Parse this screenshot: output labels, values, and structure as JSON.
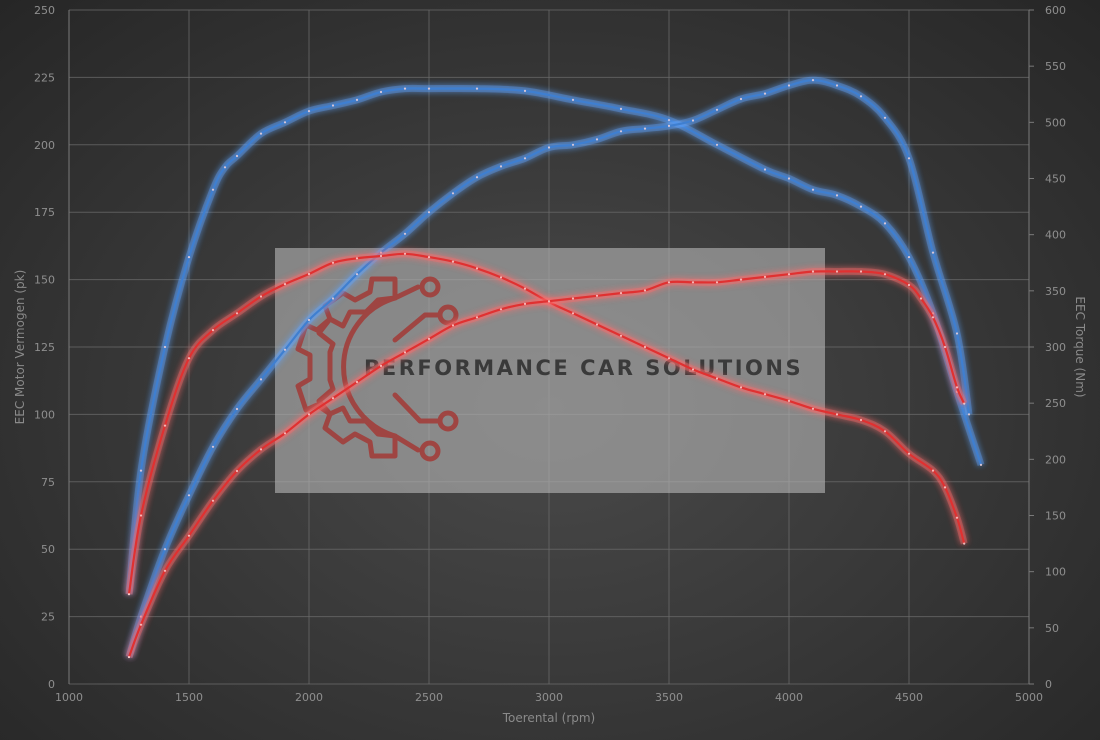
{
  "watermark": {
    "text": "PERFORMANCE CAR SOLUTIONS",
    "logo_color": "#a33a36"
  },
  "colors": {
    "tuned": "#3f7fd0",
    "tuned_glow": "#5ea2ff",
    "stock": "#e03131",
    "stock_glow": "#ff6b6b"
  },
  "chart_data": {
    "type": "line",
    "title": "",
    "xlabel": "Toerental (rpm)",
    "ylabel_left": "EEC Motor Vermogen (pk)",
    "ylabel_right": "EEC Torque (Nm)",
    "xlim": [
      1000,
      5000
    ],
    "ylim_left": [
      0,
      250
    ],
    "ylim_right": [
      0,
      600
    ],
    "x_ticks": [
      1000,
      1500,
      2000,
      2500,
      3000,
      3500,
      4000,
      4500,
      5000
    ],
    "y_left_ticks": [
      0,
      25,
      50,
      75,
      100,
      125,
      150,
      175,
      200,
      225,
      250
    ],
    "y_right_ticks": [
      0,
      50,
      100,
      150,
      200,
      250,
      300,
      350,
      400,
      450,
      500,
      550,
      600
    ],
    "grid": true,
    "legend": "none",
    "series": [
      {
        "axis": "right",
        "color_key": "tuned",
        "x": [
          1250,
          1300,
          1400,
          1500,
          1600,
          1650,
          1700,
          1800,
          1900,
          2000,
          2100,
          2200,
          2300,
          2400,
          2500,
          2700,
          2900,
          3100,
          3300,
          3500,
          3700,
          3900,
          4000,
          4100,
          4200,
          4300,
          4400,
          4500,
          4600,
          4700,
          4800
        ],
        "y": [
          80,
          190,
          300,
          380,
          440,
          460,
          470,
          490,
          500,
          510,
          515,
          520,
          527,
          530,
          530,
          530,
          528,
          520,
          512,
          502,
          480,
          458,
          450,
          440,
          435,
          425,
          410,
          380,
          330,
          260,
          195
        ]
      },
      {
        "axis": "left",
        "color_key": "tuned",
        "x": [
          1250,
          1300,
          1400,
          1500,
          1600,
          1700,
          1800,
          1900,
          2000,
          2100,
          2200,
          2300,
          2400,
          2500,
          2600,
          2700,
          2800,
          2900,
          3000,
          3100,
          3200,
          3300,
          3400,
          3500,
          3600,
          3700,
          3800,
          3900,
          4000,
          4100,
          4200,
          4300,
          4400,
          4500,
          4600,
          4700,
          4750
        ],
        "y": [
          10,
          25,
          50,
          70,
          88,
          102,
          113,
          124,
          135,
          143,
          152,
          160,
          167,
          175,
          182,
          188,
          192,
          195,
          199,
          200,
          202,
          205,
          206,
          207,
          209,
          213,
          217,
          219,
          222,
          224,
          222,
          218,
          210,
          195,
          160,
          130,
          100
        ]
      },
      {
        "axis": "right",
        "color_key": "stock",
        "x": [
          1250,
          1300,
          1400,
          1500,
          1600,
          1700,
          1800,
          1900,
          2000,
          2100,
          2200,
          2300,
          2400,
          2500,
          2600,
          2700,
          2800,
          2900,
          3000,
          3100,
          3200,
          3300,
          3400,
          3500,
          3600,
          3700,
          3800,
          3900,
          4000,
          4100,
          4200,
          4300,
          4400,
          4500,
          4600,
          4650,
          4700,
          4730
        ],
        "y": [
          80,
          150,
          230,
          290,
          315,
          330,
          345,
          356,
          365,
          375,
          379,
          381,
          383,
          380,
          376,
          370,
          362,
          352,
          340,
          330,
          320,
          310,
          300,
          290,
          280,
          272,
          264,
          258,
          252,
          245,
          240,
          235,
          225,
          205,
          190,
          175,
          148,
          125
        ]
      },
      {
        "axis": "left",
        "color_key": "stock",
        "x": [
          1250,
          1300,
          1400,
          1500,
          1600,
          1700,
          1800,
          1900,
          2000,
          2100,
          2200,
          2300,
          2400,
          2500,
          2600,
          2700,
          2800,
          2900,
          3000,
          3100,
          3200,
          3300,
          3400,
          3500,
          3600,
          3700,
          3800,
          3900,
          4000,
          4100,
          4200,
          4300,
          4400,
          4500,
          4550,
          4600,
          4650,
          4700,
          4730
        ],
        "y": [
          10,
          22,
          42,
          55,
          68,
          79,
          87,
          93,
          100,
          106,
          112,
          118,
          123,
          128,
          133,
          136,
          139,
          141,
          142,
          143,
          144,
          145,
          146,
          149,
          149,
          149,
          150,
          151,
          152,
          153,
          153,
          153,
          152,
          148,
          143,
          136,
          125,
          110,
          104
        ]
      }
    ]
  }
}
